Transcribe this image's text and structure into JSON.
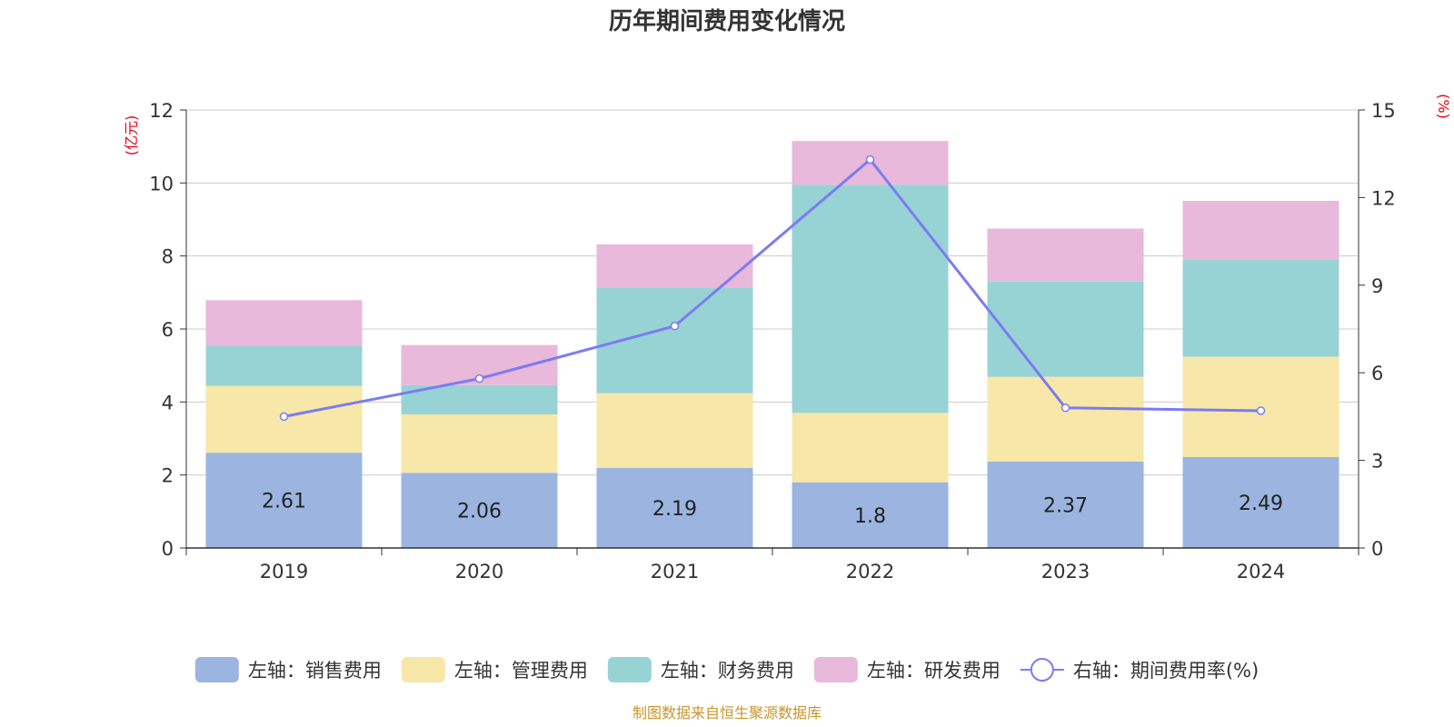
{
  "chart_data": {
    "type": "bar",
    "title": "历年期间费用变化情况",
    "ylabel_left": "(亿元)",
    "ylabel_right": "(%)",
    "categories": [
      "2019",
      "2020",
      "2021",
      "2022",
      "2023",
      "2024"
    ],
    "ylim_left": [
      0,
      12
    ],
    "ylim_right": [
      0,
      15
    ],
    "yticks_left": [
      "0",
      "2",
      "4",
      "6",
      "8",
      "10",
      "12"
    ],
    "yticks_right": [
      "0",
      "3",
      "6",
      "9",
      "12",
      "15"
    ],
    "series": [
      {
        "name": "销售费用",
        "axis": "left",
        "kind": "bar",
        "color": "#9bb5e0",
        "values": [
          2.61,
          2.06,
          2.19,
          1.8,
          2.37,
          2.49
        ],
        "labels": [
          "2.61",
          "2.06",
          "2.19",
          "1.8",
          "2.37",
          "2.49"
        ]
      },
      {
        "name": "管理费用",
        "axis": "left",
        "kind": "bar",
        "color": "#f7e7a8",
        "values": [
          1.83,
          1.6,
          2.05,
          1.9,
          2.32,
          2.75
        ]
      },
      {
        "name": "财务费用",
        "axis": "left",
        "kind": "bar",
        "color": "#97d3d5",
        "values": [
          1.1,
          0.8,
          2.88,
          6.25,
          2.61,
          2.67
        ]
      },
      {
        "name": "研发费用",
        "axis": "left",
        "kind": "bar",
        "color": "#e8b9da",
        "values": [
          1.25,
          1.1,
          1.2,
          1.2,
          1.45,
          1.6
        ]
      },
      {
        "name": "期间费用率(%)",
        "axis": "right",
        "kind": "line",
        "color": "#7b7cf0",
        "values": [
          4.5,
          5.8,
          7.6,
          13.3,
          4.8,
          4.7
        ]
      }
    ],
    "legend": [
      {
        "label": "左轴：销售费用",
        "color": "#9bb5e0",
        "kind": "bar"
      },
      {
        "label": "左轴：管理费用",
        "color": "#f7e7a8",
        "kind": "bar"
      },
      {
        "label": "左轴：财务费用",
        "color": "#97d3d5",
        "kind": "bar"
      },
      {
        "label": "左轴：研发费用",
        "color": "#e8b9da",
        "kind": "bar"
      },
      {
        "label": "右轴：期间费用率(%)",
        "color": "#7b7cf0",
        "kind": "line"
      }
    ],
    "legend_position": "bottom",
    "grid": true
  },
  "source_note": "制图数据来自恒生聚源数据库",
  "colors": {
    "axis_unit": "#e60012",
    "source_note": "#c8952b",
    "grid": "#cccccc",
    "text": "#333333"
  }
}
